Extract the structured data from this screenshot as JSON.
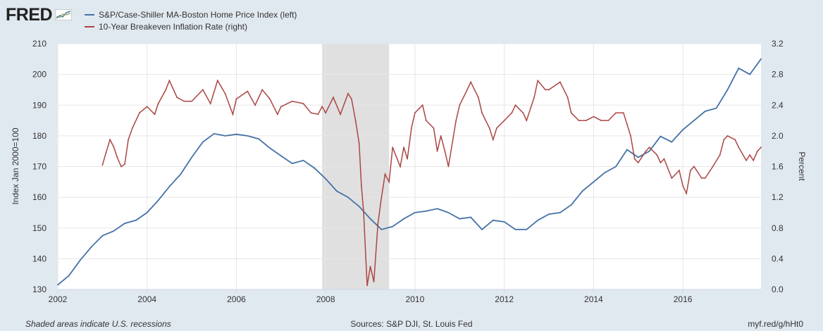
{
  "header": {
    "logo_text": "FRED",
    "legend": [
      {
        "label": "S&P/Case-Shiller MA-Boston Home Price Index (left)",
        "color": "#4572a7"
      },
      {
        "label": "10-Year Breakeven Inflation Rate (right)",
        "color": "#aa4643"
      }
    ]
  },
  "footer": {
    "note": "Shaded areas indicate U.S. recessions",
    "sources": "Sources: S&P DJI, St. Louis Fed",
    "link": "myf.red/g/hHt0"
  },
  "chart_data": {
    "type": "line",
    "x_range": [
      2002.0,
      2017.75
    ],
    "x_ticks": [
      2002,
      2004,
      2006,
      2008,
      2010,
      2012,
      2014,
      2016
    ],
    "y_left": {
      "label": "Index Jan 2000=100",
      "range": [
        130,
        210
      ],
      "ticks": [
        130,
        140,
        150,
        160,
        170,
        180,
        190,
        200,
        210
      ]
    },
    "y_right": {
      "label": "Percent",
      "range": [
        0.0,
        3.2
      ],
      "ticks": [
        "0.0",
        "0.4",
        "0.8",
        "1.2",
        "1.6",
        "2.0",
        "2.4",
        "2.8",
        "3.2"
      ]
    },
    "grid": true,
    "recession": {
      "start": 2007.92,
      "end": 2009.42,
      "color": "#e0e0e0"
    },
    "series": [
      {
        "name": "S&P/Case-Shiller MA-Boston Home Price Index (left)",
        "axis": "left",
        "color": "#4572a7",
        "points": [
          [
            2002.0,
            131.5
          ],
          [
            2002.25,
            134.5
          ],
          [
            2002.5,
            139.5
          ],
          [
            2002.75,
            143.8
          ],
          [
            2003.0,
            147.5
          ],
          [
            2003.25,
            149.0
          ],
          [
            2003.5,
            151.5
          ],
          [
            2003.75,
            152.5
          ],
          [
            2004.0,
            155.0
          ],
          [
            2004.25,
            159.0
          ],
          [
            2004.5,
            163.5
          ],
          [
            2004.75,
            167.5
          ],
          [
            2005.0,
            173.0
          ],
          [
            2005.25,
            178.0
          ],
          [
            2005.5,
            180.7
          ],
          [
            2005.75,
            180.0
          ],
          [
            2006.0,
            180.5
          ],
          [
            2006.25,
            180.0
          ],
          [
            2006.5,
            179.0
          ],
          [
            2006.75,
            176.0
          ],
          [
            2007.0,
            173.5
          ],
          [
            2007.25,
            171.0
          ],
          [
            2007.5,
            172.0
          ],
          [
            2007.75,
            169.5
          ],
          [
            2008.0,
            166.0
          ],
          [
            2008.25,
            162.0
          ],
          [
            2008.5,
            160.0
          ],
          [
            2008.75,
            157.0
          ],
          [
            2009.0,
            153.0
          ],
          [
            2009.25,
            149.5
          ],
          [
            2009.5,
            150.5
          ],
          [
            2009.75,
            153.0
          ],
          [
            2010.0,
            155.0
          ],
          [
            2010.25,
            155.5
          ],
          [
            2010.5,
            156.3
          ],
          [
            2010.75,
            155.0
          ],
          [
            2011.0,
            153.0
          ],
          [
            2011.25,
            153.5
          ],
          [
            2011.5,
            149.5
          ],
          [
            2011.75,
            152.5
          ],
          [
            2012.0,
            152.0
          ],
          [
            2012.25,
            149.5
          ],
          [
            2012.5,
            149.5
          ],
          [
            2012.75,
            152.5
          ],
          [
            2013.0,
            154.5
          ],
          [
            2013.25,
            155.0
          ],
          [
            2013.5,
            157.5
          ],
          [
            2013.75,
            162.0
          ],
          [
            2014.0,
            165.0
          ],
          [
            2014.25,
            168.0
          ],
          [
            2014.5,
            170.0
          ],
          [
            2014.75,
            175.5
          ],
          [
            2015.0,
            173.0
          ],
          [
            2015.25,
            175.0
          ],
          [
            2015.5,
            179.8
          ],
          [
            2015.75,
            178.0
          ],
          [
            2016.0,
            182.0
          ],
          [
            2016.25,
            185.0
          ],
          [
            2016.5,
            188.0
          ],
          [
            2016.75,
            189.0
          ],
          [
            2017.0,
            195.0
          ],
          [
            2017.25,
            202.0
          ],
          [
            2017.5,
            200.0
          ],
          [
            2017.75,
            205.0
          ]
        ]
      },
      {
        "name": "10-Year Breakeven Inflation Rate (right)",
        "axis": "right",
        "color": "#aa4643",
        "points": [
          [
            2003.0,
            1.62
          ],
          [
            2003.08,
            1.78
          ],
          [
            2003.17,
            1.95
          ],
          [
            2003.25,
            1.86
          ],
          [
            2003.33,
            1.72
          ],
          [
            2003.42,
            1.6
          ],
          [
            2003.5,
            1.63
          ],
          [
            2003.58,
            1.95
          ],
          [
            2003.67,
            2.1
          ],
          [
            2003.83,
            2.3
          ],
          [
            2004.0,
            2.38
          ],
          [
            2004.17,
            2.28
          ],
          [
            2004.25,
            2.42
          ],
          [
            2004.42,
            2.6
          ],
          [
            2004.5,
            2.72
          ],
          [
            2004.67,
            2.5
          ],
          [
            2004.83,
            2.45
          ],
          [
            2005.0,
            2.45
          ],
          [
            2005.25,
            2.6
          ],
          [
            2005.42,
            2.42
          ],
          [
            2005.58,
            2.72
          ],
          [
            2005.75,
            2.55
          ],
          [
            2005.92,
            2.28
          ],
          [
            2006.0,
            2.48
          ],
          [
            2006.25,
            2.58
          ],
          [
            2006.42,
            2.4
          ],
          [
            2006.58,
            2.6
          ],
          [
            2006.75,
            2.48
          ],
          [
            2006.92,
            2.28
          ],
          [
            2007.0,
            2.38
          ],
          [
            2007.25,
            2.45
          ],
          [
            2007.5,
            2.42
          ],
          [
            2007.67,
            2.3
          ],
          [
            2007.83,
            2.28
          ],
          [
            2007.92,
            2.38
          ],
          [
            2008.0,
            2.3
          ],
          [
            2008.17,
            2.5
          ],
          [
            2008.33,
            2.28
          ],
          [
            2008.5,
            2.55
          ],
          [
            2008.58,
            2.48
          ],
          [
            2008.67,
            2.2
          ],
          [
            2008.75,
            1.9
          ],
          [
            2008.8,
            1.35
          ],
          [
            2008.85,
            1.0
          ],
          [
            2008.9,
            0.4
          ],
          [
            2008.93,
            0.05
          ],
          [
            2009.0,
            0.3
          ],
          [
            2009.08,
            0.1
          ],
          [
            2009.17,
            0.85
          ],
          [
            2009.25,
            1.2
          ],
          [
            2009.33,
            1.5
          ],
          [
            2009.42,
            1.4
          ],
          [
            2009.5,
            1.85
          ],
          [
            2009.67,
            1.6
          ],
          [
            2009.75,
            1.85
          ],
          [
            2009.83,
            1.7
          ],
          [
            2009.92,
            2.1
          ],
          [
            2010.0,
            2.3
          ],
          [
            2010.17,
            2.4
          ],
          [
            2010.25,
            2.2
          ],
          [
            2010.42,
            2.1
          ],
          [
            2010.5,
            1.8
          ],
          [
            2010.58,
            2.0
          ],
          [
            2010.67,
            1.8
          ],
          [
            2010.75,
            1.6
          ],
          [
            2010.92,
            2.2
          ],
          [
            2011.0,
            2.4
          ],
          [
            2011.17,
            2.6
          ],
          [
            2011.25,
            2.7
          ],
          [
            2011.42,
            2.5
          ],
          [
            2011.5,
            2.3
          ],
          [
            2011.67,
            2.1
          ],
          [
            2011.75,
            1.95
          ],
          [
            2011.83,
            2.1
          ],
          [
            2012.0,
            2.2
          ],
          [
            2012.17,
            2.3
          ],
          [
            2012.25,
            2.4
          ],
          [
            2012.42,
            2.3
          ],
          [
            2012.5,
            2.2
          ],
          [
            2012.67,
            2.5
          ],
          [
            2012.75,
            2.72
          ],
          [
            2012.92,
            2.6
          ],
          [
            2013.0,
            2.6
          ],
          [
            2013.25,
            2.7
          ],
          [
            2013.42,
            2.5
          ],
          [
            2013.5,
            2.3
          ],
          [
            2013.67,
            2.2
          ],
          [
            2013.83,
            2.2
          ],
          [
            2014.0,
            2.25
          ],
          [
            2014.17,
            2.2
          ],
          [
            2014.33,
            2.2
          ],
          [
            2014.5,
            2.3
          ],
          [
            2014.67,
            2.3
          ],
          [
            2014.75,
            2.15
          ],
          [
            2014.83,
            2.0
          ],
          [
            2014.92,
            1.7
          ],
          [
            2015.0,
            1.65
          ],
          [
            2015.17,
            1.8
          ],
          [
            2015.25,
            1.85
          ],
          [
            2015.42,
            1.75
          ],
          [
            2015.5,
            1.65
          ],
          [
            2015.58,
            1.7
          ],
          [
            2015.75,
            1.45
          ],
          [
            2015.92,
            1.55
          ],
          [
            2016.0,
            1.35
          ],
          [
            2016.08,
            1.25
          ],
          [
            2016.17,
            1.55
          ],
          [
            2016.25,
            1.6
          ],
          [
            2016.42,
            1.45
          ],
          [
            2016.5,
            1.45
          ],
          [
            2016.67,
            1.6
          ],
          [
            2016.83,
            1.75
          ],
          [
            2016.92,
            1.95
          ],
          [
            2017.0,
            2.0
          ],
          [
            2017.17,
            1.95
          ],
          [
            2017.25,
            1.85
          ],
          [
            2017.42,
            1.68
          ],
          [
            2017.5,
            1.75
          ],
          [
            2017.58,
            1.68
          ],
          [
            2017.67,
            1.8
          ],
          [
            2017.75,
            1.85
          ]
        ]
      }
    ]
  }
}
